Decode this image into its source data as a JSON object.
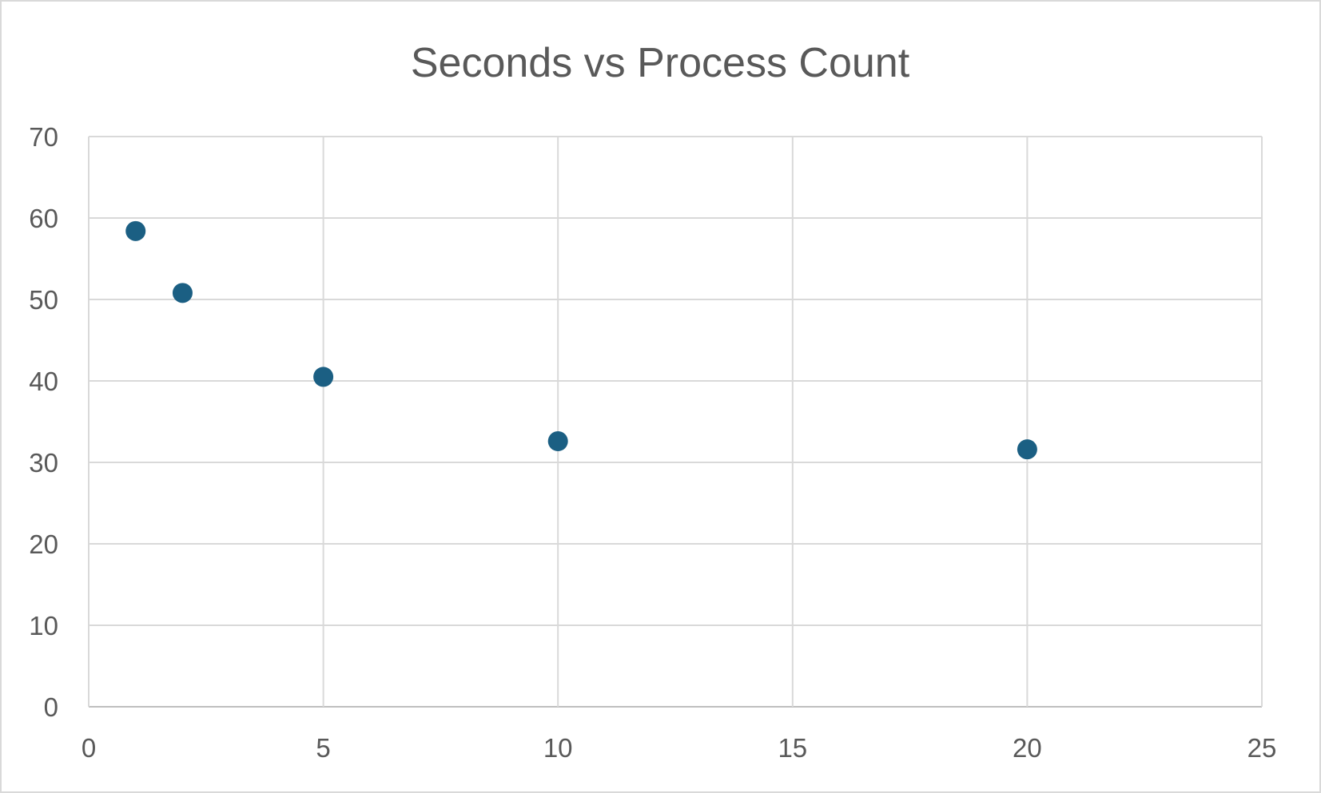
{
  "chart_data": {
    "type": "scatter",
    "title": "Seconds vs Process Count",
    "xlabel": "",
    "ylabel": "",
    "xlim": [
      0,
      25
    ],
    "ylim": [
      0,
      70
    ],
    "x_ticks": [
      0,
      5,
      10,
      15,
      20,
      25
    ],
    "y_ticks": [
      0,
      10,
      20,
      30,
      40,
      50,
      60,
      70
    ],
    "grid": true,
    "legend": "none",
    "marker_color": "#1b5f83",
    "grid_color": "#d9d9d9",
    "series": [
      {
        "points": [
          {
            "x": 1,
            "y": 58.4
          },
          {
            "x": 2,
            "y": 50.8
          },
          {
            "x": 5,
            "y": 40.5
          },
          {
            "x": 10,
            "y": 32.6
          },
          {
            "x": 20,
            "y": 31.6
          }
        ]
      }
    ]
  }
}
